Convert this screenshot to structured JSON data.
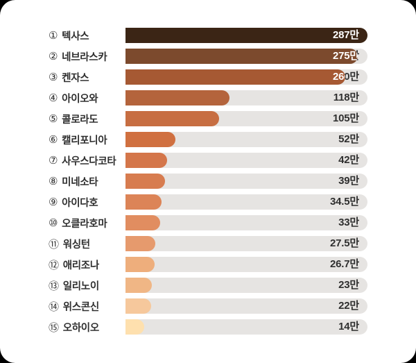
{
  "chart_data": {
    "type": "bar",
    "orientation": "horizontal",
    "title": "",
    "xlabel": "",
    "ylabel": "",
    "unit": "만",
    "xlim": [
      0,
      287
    ],
    "grid": false,
    "legend": "none",
    "categories": [
      "텍사스",
      "네브라스카",
      "켄자스",
      "아이오와",
      "콜로라도",
      "캘리포니아",
      "사우스다코타",
      "미네소타",
      "아이다호",
      "오클라호마",
      "워싱턴",
      "애리조나",
      "일리노이",
      "위스콘신",
      "오하이오"
    ],
    "markers": [
      "①",
      "②",
      "③",
      "④",
      "⑤",
      "⑥",
      "⑦",
      "⑧",
      "⑨",
      "⑩",
      "⑪",
      "⑫",
      "⑬",
      "⑭",
      "⑮"
    ],
    "values": [
      287,
      275,
      260,
      118,
      105,
      52,
      42,
      39,
      34.5,
      33,
      27.5,
      26.7,
      23,
      22,
      14
    ],
    "value_labels": [
      "287만",
      "275만",
      "260만",
      "118만",
      "105만",
      "52만",
      "42만",
      "39만",
      "34.5만",
      "33만",
      "27.5만",
      "26.7만",
      "23만",
      "22만",
      "14만"
    ],
    "bar_colors": [
      "#3b2515",
      "#7c4a2d",
      "#a65933",
      "#b4643c",
      "#c76e42",
      "#d07040",
      "#d4764a",
      "#d77c4f",
      "#dc8457",
      "#e18d60",
      "#e69a6d",
      "#eeae7c",
      "#f0b685",
      "#f6c89c",
      "#fee0ae"
    ],
    "track_color": "#e6e4e2",
    "value_text_color_on_track": "#2f2f2f",
    "value_text_color_on_bar": "#ffffff",
    "label_text_color": "#2e2e2e",
    "card_background": "#ffffff"
  }
}
